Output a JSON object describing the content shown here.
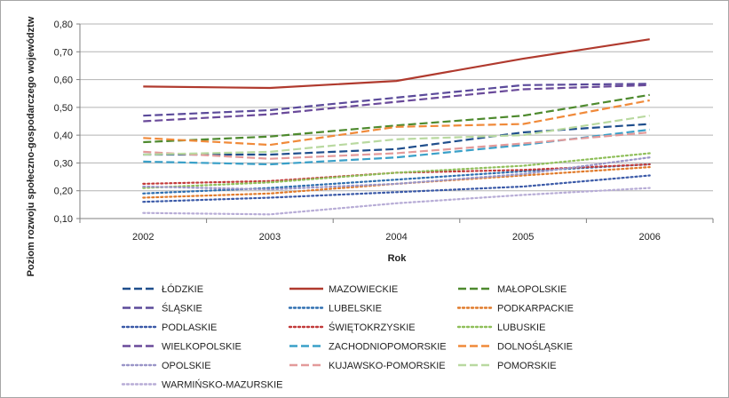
{
  "chart_data": {
    "type": "line",
    "xlabel": "Rok",
    "ylabel": "Poziom rozwoju społeczno-gospodarczego województw",
    "categories": [
      "2002",
      "2003",
      "2004",
      "2005",
      "2006"
    ],
    "ylim": [
      0.1,
      0.8
    ],
    "yticks": [
      "0,10",
      "0,20",
      "0,30",
      "0,40",
      "0,50",
      "0,60",
      "0,70",
      "0,80"
    ],
    "grid": true,
    "legend_position": "bottom",
    "series": [
      {
        "name": "ŁÓDZKIE",
        "values": [
          0.33,
          0.33,
          0.35,
          0.41,
          0.44
        ],
        "color": "#1f4e8c",
        "dash": "long"
      },
      {
        "name": "MAZOWIECKIE",
        "values": [
          0.575,
          0.57,
          0.595,
          0.675,
          0.745
        ],
        "color": "#b03a2e",
        "dash": "solid"
      },
      {
        "name": "MAŁOPOLSKIE",
        "values": [
          0.375,
          0.395,
          0.435,
          0.47,
          0.545
        ],
        "color": "#4e8a2e",
        "dash": "long"
      },
      {
        "name": "ŚLĄSKIE",
        "values": [
          0.47,
          0.49,
          0.535,
          0.58,
          0.585
        ],
        "color": "#5b4a9a",
        "dash": "long"
      },
      {
        "name": "LUBELSKIE",
        "values": [
          0.19,
          0.21,
          0.24,
          0.27,
          0.295
        ],
        "color": "#2f6fb0",
        "dash": "dot"
      },
      {
        "name": "PODKARPACKIE",
        "values": [
          0.175,
          0.19,
          0.225,
          0.255,
          0.285
        ],
        "color": "#e07a2a",
        "dash": "dot"
      },
      {
        "name": "PODLASKIE",
        "values": [
          0.16,
          0.175,
          0.195,
          0.215,
          0.255
        ],
        "color": "#3b5aa8",
        "dash": "dot"
      },
      {
        "name": "ŚWIĘTOKRZYSKIE",
        "values": [
          0.225,
          0.235,
          0.265,
          0.275,
          0.295
        ],
        "color": "#c23a3a",
        "dash": "dot"
      },
      {
        "name": "LUBUSKIE",
        "values": [
          0.21,
          0.23,
          0.265,
          0.29,
          0.335
        ],
        "color": "#8fbf5a",
        "dash": "dot"
      },
      {
        "name": "WIELKOPOLSKIE",
        "values": [
          0.45,
          0.475,
          0.52,
          0.565,
          0.58
        ],
        "color": "#6a4a9a",
        "dash": "long"
      },
      {
        "name": "ZACHODNIOPOMORSKIE",
        "values": [
          0.305,
          0.295,
          0.32,
          0.365,
          0.42
        ],
        "color": "#3aa0c8",
        "dash": "long"
      },
      {
        "name": "DOLNOŚLĄSKIE",
        "values": [
          0.39,
          0.365,
          0.43,
          0.44,
          0.525
        ],
        "color": "#f08a3a",
        "dash": "long"
      },
      {
        "name": "OPOLSKIE",
        "values": [
          0.215,
          0.205,
          0.225,
          0.26,
          0.32
        ],
        "color": "#9a96c8",
        "dash": "dot"
      },
      {
        "name": "KUJAWSKO-POMORSKIE",
        "values": [
          0.34,
          0.315,
          0.335,
          0.37,
          0.41
        ],
        "color": "#e39a9a",
        "dash": "long"
      },
      {
        "name": "POMORSKIE",
        "values": [
          0.33,
          0.34,
          0.385,
          0.4,
          0.47
        ],
        "color": "#b9d9a0",
        "dash": "long"
      },
      {
        "name": "WARMIŃSKO-MAZURSKIE",
        "values": [
          0.12,
          0.115,
          0.155,
          0.185,
          0.21
        ],
        "color": "#b7acd6",
        "dash": "dot"
      }
    ]
  }
}
